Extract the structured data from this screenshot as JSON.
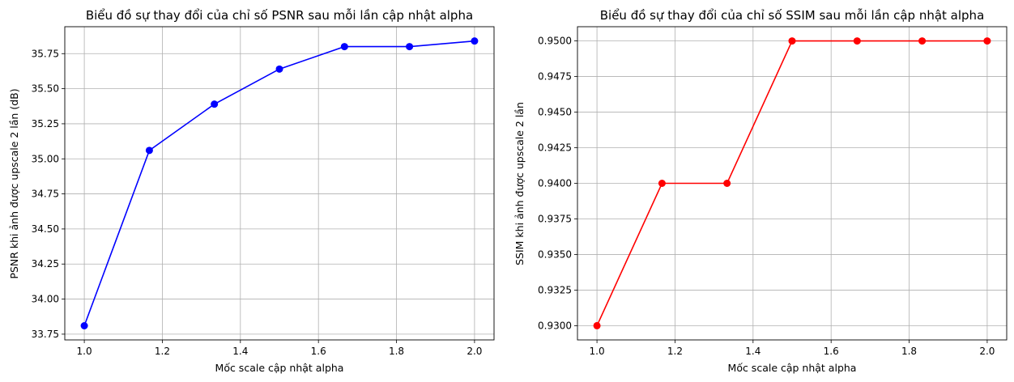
{
  "chart_data": [
    {
      "type": "line",
      "title": "Biểu đồ sự thay đổi của chỉ số PSNR sau mỗi lần cập nhật alpha",
      "xlabel": "Mốc scale cập nhật alpha",
      "ylabel": "PSNR khi ảnh được upscale 2 lần (dB)",
      "x": [
        1.0,
        1.1667,
        1.3333,
        1.5,
        1.6667,
        1.8333,
        2.0
      ],
      "series": [
        {
          "values": [
            33.81,
            35.06,
            35.39,
            35.64,
            35.8,
            35.8,
            35.84
          ],
          "color": "#0000ff",
          "marker": "circle"
        }
      ],
      "xlim": [
        0.95,
        2.05
      ],
      "ylim": [
        33.709,
        35.942
      ],
      "xticks": [
        1.0,
        1.2,
        1.4,
        1.6,
        1.8,
        2.0
      ],
      "xtick_labels": [
        "1.0",
        "1.2",
        "1.4",
        "1.6",
        "1.8",
        "2.0"
      ],
      "yticks": [
        33.75,
        34.0,
        34.25,
        34.5,
        34.75,
        35.0,
        35.25,
        35.5,
        35.75
      ],
      "ytick_labels": [
        "33.75",
        "34.00",
        "34.25",
        "34.50",
        "34.75",
        "35.00",
        "35.25",
        "35.50",
        "35.75"
      ],
      "grid": true
    },
    {
      "type": "line",
      "title": "Biểu đồ sự thay đổi của chỉ số SSIM sau mỗi lần cập nhật alpha",
      "xlabel": "Mốc scale cập nhật alpha",
      "ylabel": "SSIM khi ảnh được upscale 2 lần",
      "x": [
        1.0,
        1.1667,
        1.3333,
        1.5,
        1.6667,
        1.8333,
        2.0
      ],
      "series": [
        {
          "values": [
            0.93,
            0.94,
            0.94,
            0.95,
            0.95,
            0.95,
            0.95
          ],
          "color": "#ff0000",
          "marker": "circle"
        }
      ],
      "xlim": [
        0.95,
        2.05
      ],
      "ylim": [
        0.929,
        0.951
      ],
      "xticks": [
        1.0,
        1.2,
        1.4,
        1.6,
        1.8,
        2.0
      ],
      "xtick_labels": [
        "1.0",
        "1.2",
        "1.4",
        "1.6",
        "1.8",
        "2.0"
      ],
      "yticks": [
        0.93,
        0.9325,
        0.935,
        0.9375,
        0.94,
        0.9425,
        0.945,
        0.9475,
        0.95
      ],
      "ytick_labels": [
        "0.9300",
        "0.9325",
        "0.9350",
        "0.9375",
        "0.9400",
        "0.9425",
        "0.9450",
        "0.9475",
        "0.9500"
      ],
      "grid": true
    }
  ]
}
